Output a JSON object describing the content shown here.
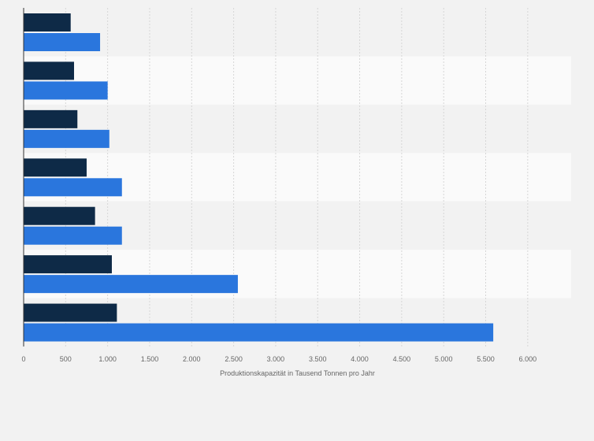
{
  "chart_data": {
    "type": "bar",
    "orientation": "horizontal",
    "categories": [
      "",
      "",
      "",
      "",
      "",
      "",
      ""
    ],
    "series": [
      {
        "values": [
          560,
          600,
          640,
          750,
          850,
          1050,
          1110
        ],
        "color": "#0e2a47"
      },
      {
        "values": [
          910,
          1000,
          1020,
          1170,
          1170,
          2550,
          5590
        ],
        "color": "#2a76dd"
      }
    ],
    "xlabel": "Produktionskapazität in Tausend Tonnen pro Jahr",
    "ylabel": "",
    "xlim": [
      0,
      6500
    ],
    "x_ticks": [
      0,
      500,
      1000,
      1500,
      2000,
      2500,
      3000,
      3500,
      4000,
      4500,
      5000,
      5500,
      6000
    ],
    "x_tick_labels": [
      "0",
      "500",
      "1.000",
      "1.500",
      "2.000",
      "2.500",
      "3.000",
      "3.500",
      "4.000",
      "4.500",
      "5.000",
      "5.500",
      "6.000"
    ],
    "grid": true,
    "legend": "none"
  }
}
